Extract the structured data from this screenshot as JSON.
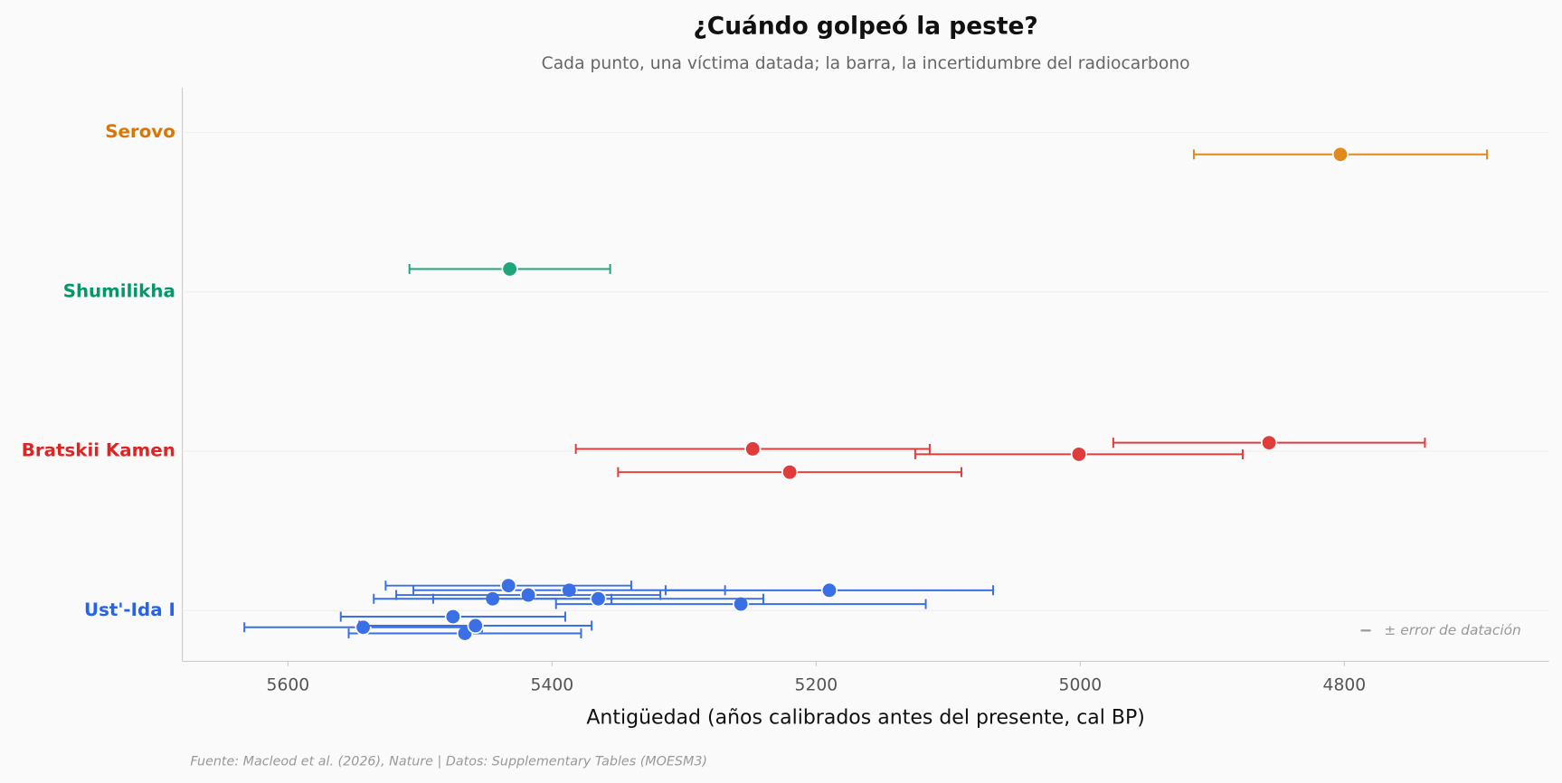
{
  "chart_data": {
    "type": "scatter",
    "title": "¿Cuándo golpeó la peste?",
    "subtitle": "Cada punto, una víctima datada; la barra, la incertidumbre del radiocarbono",
    "x_label": "Antigüedad (años calibrados antes del presente, cal BP)",
    "source": "Fuente: Macleod et al. (2026), Nature | Datos: Supplementary Tables (MOESM3)",
    "legend_note": "± error de datación",
    "xlim": [
      5680,
      4645
    ],
    "xticks": [
      5600,
      5400,
      5200,
      5000,
      4800
    ],
    "grid": true,
    "series": [
      {
        "name": "Serovo",
        "color": "#e08a1e",
        "label_color": "#d97706",
        "values": [
          4803
        ],
        "errors": [
          111
        ]
      },
      {
        "name": "Shumilikha",
        "color": "#1fa67a",
        "label_color": "#059669",
        "values": [
          5432
        ],
        "errors": [
          76
        ]
      },
      {
        "name": "Bratskii Kamen",
        "color": "#e03c3c",
        "label_color": "#dc2626",
        "values": [
          5001,
          5248,
          4857,
          5220
        ],
        "errors": [
          124,
          134,
          118,
          130
        ]
      },
      {
        "name": "Ust'-Ida I",
        "color": "#3b6fe6",
        "label_color": "#2563eb",
        "values": [
          5257,
          5445,
          5466,
          5475,
          5387,
          5418,
          5543,
          5458,
          5433,
          5190,
          5365
        ],
        "errors": [
          140,
          90,
          88,
          85,
          118,
          100,
          90,
          88,
          93,
          124,
          125
        ]
      }
    ]
  }
}
